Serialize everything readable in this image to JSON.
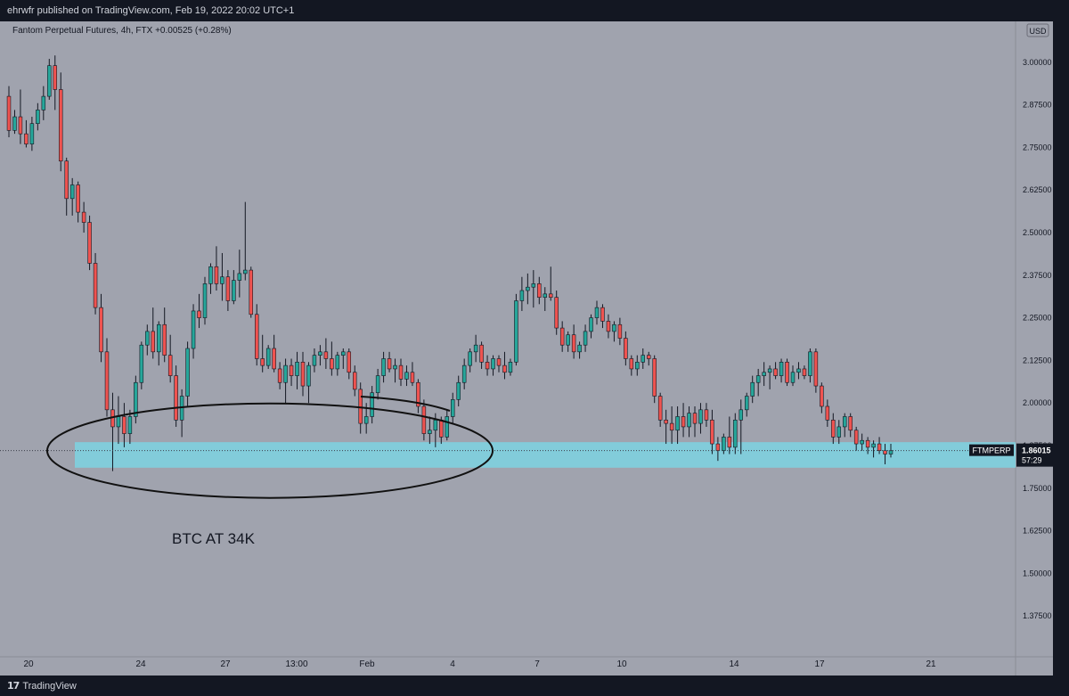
{
  "header": {
    "publisher": "ehrwfr published on TradingView.com, Feb 19, 2022 20:02 UTC+1"
  },
  "footer": {
    "brand": "TradingView"
  },
  "chart_data": {
    "type": "candlestick",
    "title": "Fantom Perpetual Futures, 4h, FTX",
    "change": "+0.00525 (+0.28%)",
    "currency": "USD",
    "symbol": "FTMPERP",
    "last_price": "1.86015",
    "countdown": "57:29",
    "ylim": [
      1.255,
      3.12
    ],
    "y_ticks": [
      "3.00000",
      "2.87500",
      "2.75000",
      "2.62500",
      "2.50000",
      "2.37500",
      "2.25000",
      "2.12500",
      "2.00000",
      "1.87500",
      "1.75000",
      "1.62500",
      "1.50000",
      "1.37500"
    ],
    "x_ticks": [
      "20",
      "24",
      "27",
      "13:00",
      "Feb",
      "4",
      "7",
      "10",
      "14",
      "17",
      "21"
    ],
    "annotation_text": "BTC AT 34K",
    "support_zone": [
      1.81,
      1.885
    ],
    "colors": {
      "up": "#26a69a",
      "down": "#ef5350",
      "zone": "#7dd3e2",
      "background": "#a0a3ae",
      "axis_bg": "#a0a3ae"
    },
    "candles": [
      [
        2.9,
        2.93,
        2.78,
        2.8
      ],
      [
        2.8,
        2.86,
        2.79,
        2.84
      ],
      [
        2.84,
        2.92,
        2.76,
        2.79
      ],
      [
        2.79,
        2.83,
        2.75,
        2.76
      ],
      [
        2.76,
        2.84,
        2.74,
        2.82
      ],
      [
        2.82,
        2.88,
        2.8,
        2.86
      ],
      [
        2.86,
        2.93,
        2.83,
        2.9
      ],
      [
        2.9,
        3.01,
        2.89,
        2.99
      ],
      [
        2.99,
        3.02,
        2.86,
        2.92
      ],
      [
        2.92,
        2.97,
        2.68,
        2.71
      ],
      [
        2.71,
        2.72,
        2.55,
        2.6
      ],
      [
        2.6,
        2.66,
        2.55,
        2.64
      ],
      [
        2.64,
        2.65,
        2.53,
        2.56
      ],
      [
        2.56,
        2.59,
        2.5,
        2.53
      ],
      [
        2.53,
        2.55,
        2.39,
        2.41
      ],
      [
        2.41,
        2.44,
        2.26,
        2.28
      ],
      [
        2.28,
        2.32,
        2.12,
        2.15
      ],
      [
        2.15,
        2.19,
        1.96,
        1.98
      ],
      [
        1.98,
        2.03,
        1.8,
        1.93
      ],
      [
        1.93,
        2.02,
        1.88,
        1.96
      ],
      [
        1.96,
        2.0,
        1.87,
        1.91
      ],
      [
        1.91,
        1.98,
        1.88,
        1.96
      ],
      [
        1.96,
        2.08,
        1.94,
        2.06
      ],
      [
        2.06,
        2.18,
        2.04,
        2.17
      ],
      [
        2.17,
        2.23,
        2.14,
        2.21
      ],
      [
        2.21,
        2.28,
        2.13,
        2.15
      ],
      [
        2.15,
        2.24,
        2.11,
        2.23
      ],
      [
        2.23,
        2.28,
        2.12,
        2.14
      ],
      [
        2.14,
        2.2,
        2.06,
        2.08
      ],
      [
        2.08,
        2.11,
        1.93,
        1.95
      ],
      [
        1.95,
        2.04,
        1.9,
        2.02
      ],
      [
        2.02,
        2.18,
        1.99,
        2.16
      ],
      [
        2.16,
        2.29,
        2.13,
        2.27
      ],
      [
        2.27,
        2.32,
        2.22,
        2.25
      ],
      [
        2.25,
        2.37,
        2.23,
        2.35
      ],
      [
        2.35,
        2.41,
        2.32,
        2.4
      ],
      [
        2.4,
        2.46,
        2.33,
        2.35
      ],
      [
        2.35,
        2.44,
        2.3,
        2.37
      ],
      [
        2.37,
        2.39,
        2.27,
        2.3
      ],
      [
        2.3,
        2.39,
        2.29,
        2.36
      ],
      [
        2.36,
        2.45,
        2.31,
        2.38
      ],
      [
        2.38,
        2.59,
        2.36,
        2.39
      ],
      [
        2.39,
        2.4,
        2.25,
        2.26
      ],
      [
        2.26,
        2.29,
        2.11,
        2.13
      ],
      [
        2.13,
        2.2,
        2.09,
        2.11
      ],
      [
        2.11,
        2.17,
        2.1,
        2.16
      ],
      [
        2.16,
        2.2,
        2.09,
        2.1
      ],
      [
        2.1,
        2.12,
        2.04,
        2.06
      ],
      [
        2.06,
        2.13,
        2.0,
        2.11
      ],
      [
        2.11,
        2.13,
        2.05,
        2.08
      ],
      [
        2.08,
        2.15,
        2.04,
        2.12
      ],
      [
        2.12,
        2.15,
        2.02,
        2.05
      ],
      [
        2.05,
        2.12,
        2.0,
        2.11
      ],
      [
        2.11,
        2.16,
        2.09,
        2.14
      ],
      [
        2.14,
        2.17,
        2.11,
        2.15
      ],
      [
        2.15,
        2.19,
        2.1,
        2.13
      ],
      [
        2.13,
        2.18,
        2.08,
        2.1
      ],
      [
        2.1,
        2.15,
        2.08,
        2.14
      ],
      [
        2.14,
        2.16,
        2.1,
        2.15
      ],
      [
        2.15,
        2.16,
        2.07,
        2.09
      ],
      [
        2.09,
        2.11,
        2.02,
        2.04
      ],
      [
        2.04,
        2.06,
        1.91,
        1.94
      ],
      [
        1.94,
        2.0,
        1.91,
        1.96
      ],
      [
        1.96,
        2.05,
        1.94,
        2.03
      ],
      [
        2.03,
        2.1,
        2.01,
        2.08
      ],
      [
        2.08,
        2.15,
        2.06,
        2.13
      ],
      [
        2.13,
        2.15,
        2.09,
        2.1
      ],
      [
        2.1,
        2.13,
        2.06,
        2.11
      ],
      [
        2.11,
        2.13,
        2.05,
        2.07
      ],
      [
        2.07,
        2.11,
        2.05,
        2.09
      ],
      [
        2.09,
        2.12,
        2.05,
        2.06
      ],
      [
        2.06,
        2.07,
        1.97,
        1.99
      ],
      [
        1.99,
        2.01,
        1.89,
        1.91
      ],
      [
        1.91,
        1.96,
        1.88,
        1.92
      ],
      [
        1.92,
        1.97,
        1.87,
        1.95
      ],
      [
        1.95,
        1.96,
        1.88,
        1.9
      ],
      [
        1.9,
        1.98,
        1.89,
        1.96
      ],
      [
        1.96,
        2.03,
        1.94,
        2.01
      ],
      [
        2.01,
        2.08,
        1.99,
        2.06
      ],
      [
        2.06,
        2.13,
        2.04,
        2.11
      ],
      [
        2.11,
        2.16,
        2.09,
        2.15
      ],
      [
        2.15,
        2.2,
        2.12,
        2.17
      ],
      [
        2.17,
        2.18,
        2.1,
        2.12
      ],
      [
        2.12,
        2.14,
        2.08,
        2.1
      ],
      [
        2.1,
        2.14,
        2.08,
        2.13
      ],
      [
        2.13,
        2.14,
        2.09,
        2.11
      ],
      [
        2.11,
        2.15,
        2.07,
        2.09
      ],
      [
        2.09,
        2.13,
        2.08,
        2.12
      ],
      [
        2.12,
        2.32,
        2.11,
        2.3
      ],
      [
        2.3,
        2.37,
        2.27,
        2.33
      ],
      [
        2.33,
        2.38,
        2.29,
        2.34
      ],
      [
        2.34,
        2.39,
        2.28,
        2.35
      ],
      [
        2.35,
        2.37,
        2.29,
        2.31
      ],
      [
        2.31,
        2.34,
        2.27,
        2.32
      ],
      [
        2.32,
        2.4,
        2.3,
        2.31
      ],
      [
        2.31,
        2.33,
        2.2,
        2.22
      ],
      [
        2.22,
        2.24,
        2.15,
        2.17
      ],
      [
        2.17,
        2.21,
        2.15,
        2.2
      ],
      [
        2.2,
        2.23,
        2.13,
        2.15
      ],
      [
        2.15,
        2.18,
        2.13,
        2.17
      ],
      [
        2.17,
        2.23,
        2.15,
        2.21
      ],
      [
        2.21,
        2.26,
        2.19,
        2.25
      ],
      [
        2.25,
        2.3,
        2.23,
        2.28
      ],
      [
        2.28,
        2.29,
        2.22,
        2.24
      ],
      [
        2.24,
        2.26,
        2.19,
        2.21
      ],
      [
        2.21,
        2.24,
        2.18,
        2.23
      ],
      [
        2.23,
        2.25,
        2.17,
        2.19
      ],
      [
        2.19,
        2.21,
        2.11,
        2.13
      ],
      [
        2.13,
        2.14,
        2.08,
        2.1
      ],
      [
        2.1,
        2.14,
        2.08,
        2.12
      ],
      [
        2.12,
        2.16,
        2.1,
        2.14
      ],
      [
        2.14,
        2.15,
        2.11,
        2.13
      ],
      [
        2.13,
        2.14,
        2.0,
        2.02
      ],
      [
        2.02,
        2.03,
        1.93,
        1.95
      ],
      [
        1.95,
        1.98,
        1.88,
        1.94
      ],
      [
        1.94,
        1.99,
        1.88,
        1.92
      ],
      [
        1.92,
        1.99,
        1.88,
        1.96
      ],
      [
        1.96,
        2.0,
        1.9,
        1.93
      ],
      [
        1.93,
        1.99,
        1.9,
        1.97
      ],
      [
        1.97,
        1.99,
        1.9,
        1.94
      ],
      [
        1.94,
        2.0,
        1.91,
        1.98
      ],
      [
        1.98,
        2.0,
        1.93,
        1.95
      ],
      [
        1.95,
        1.98,
        1.85,
        1.88
      ],
      [
        1.88,
        1.9,
        1.83,
        1.86
      ],
      [
        1.86,
        1.91,
        1.85,
        1.9
      ],
      [
        1.9,
        1.96,
        1.85,
        1.87
      ],
      [
        1.87,
        1.97,
        1.85,
        1.95
      ],
      [
        1.95,
        2.01,
        1.85,
        1.98
      ],
      [
        1.98,
        2.03,
        1.96,
        2.02
      ],
      [
        2.02,
        2.08,
        2.0,
        2.06
      ],
      [
        2.06,
        2.1,
        2.02,
        2.08
      ],
      [
        2.08,
        2.12,
        2.05,
        2.09
      ],
      [
        2.09,
        2.11,
        2.04,
        2.1
      ],
      [
        2.1,
        2.12,
        2.07,
        2.08
      ],
      [
        2.08,
        2.13,
        2.06,
        2.12
      ],
      [
        2.12,
        2.13,
        2.05,
        2.06
      ],
      [
        2.06,
        2.11,
        2.05,
        2.09
      ],
      [
        2.09,
        2.12,
        2.07,
        2.1
      ],
      [
        2.1,
        2.11,
        2.07,
        2.08
      ],
      [
        2.08,
        2.16,
        2.06,
        2.15
      ],
      [
        2.15,
        2.16,
        2.03,
        2.05
      ],
      [
        2.05,
        2.06,
        1.97,
        1.99
      ],
      [
        1.99,
        2.01,
        1.93,
        1.95
      ],
      [
        1.95,
        1.97,
        1.88,
        1.9
      ],
      [
        1.9,
        1.95,
        1.88,
        1.93
      ],
      [
        1.93,
        1.97,
        1.9,
        1.96
      ],
      [
        1.96,
        1.97,
        1.9,
        1.92
      ],
      [
        1.92,
        1.93,
        1.86,
        1.88
      ],
      [
        1.88,
        1.91,
        1.86,
        1.89
      ],
      [
        1.89,
        1.9,
        1.85,
        1.87
      ],
      [
        1.87,
        1.89,
        1.84,
        1.88
      ],
      [
        1.88,
        1.9,
        1.85,
        1.86
      ],
      [
        1.86,
        1.88,
        1.82,
        1.85
      ],
      [
        1.85,
        1.88,
        1.84,
        1.86
      ]
    ]
  }
}
